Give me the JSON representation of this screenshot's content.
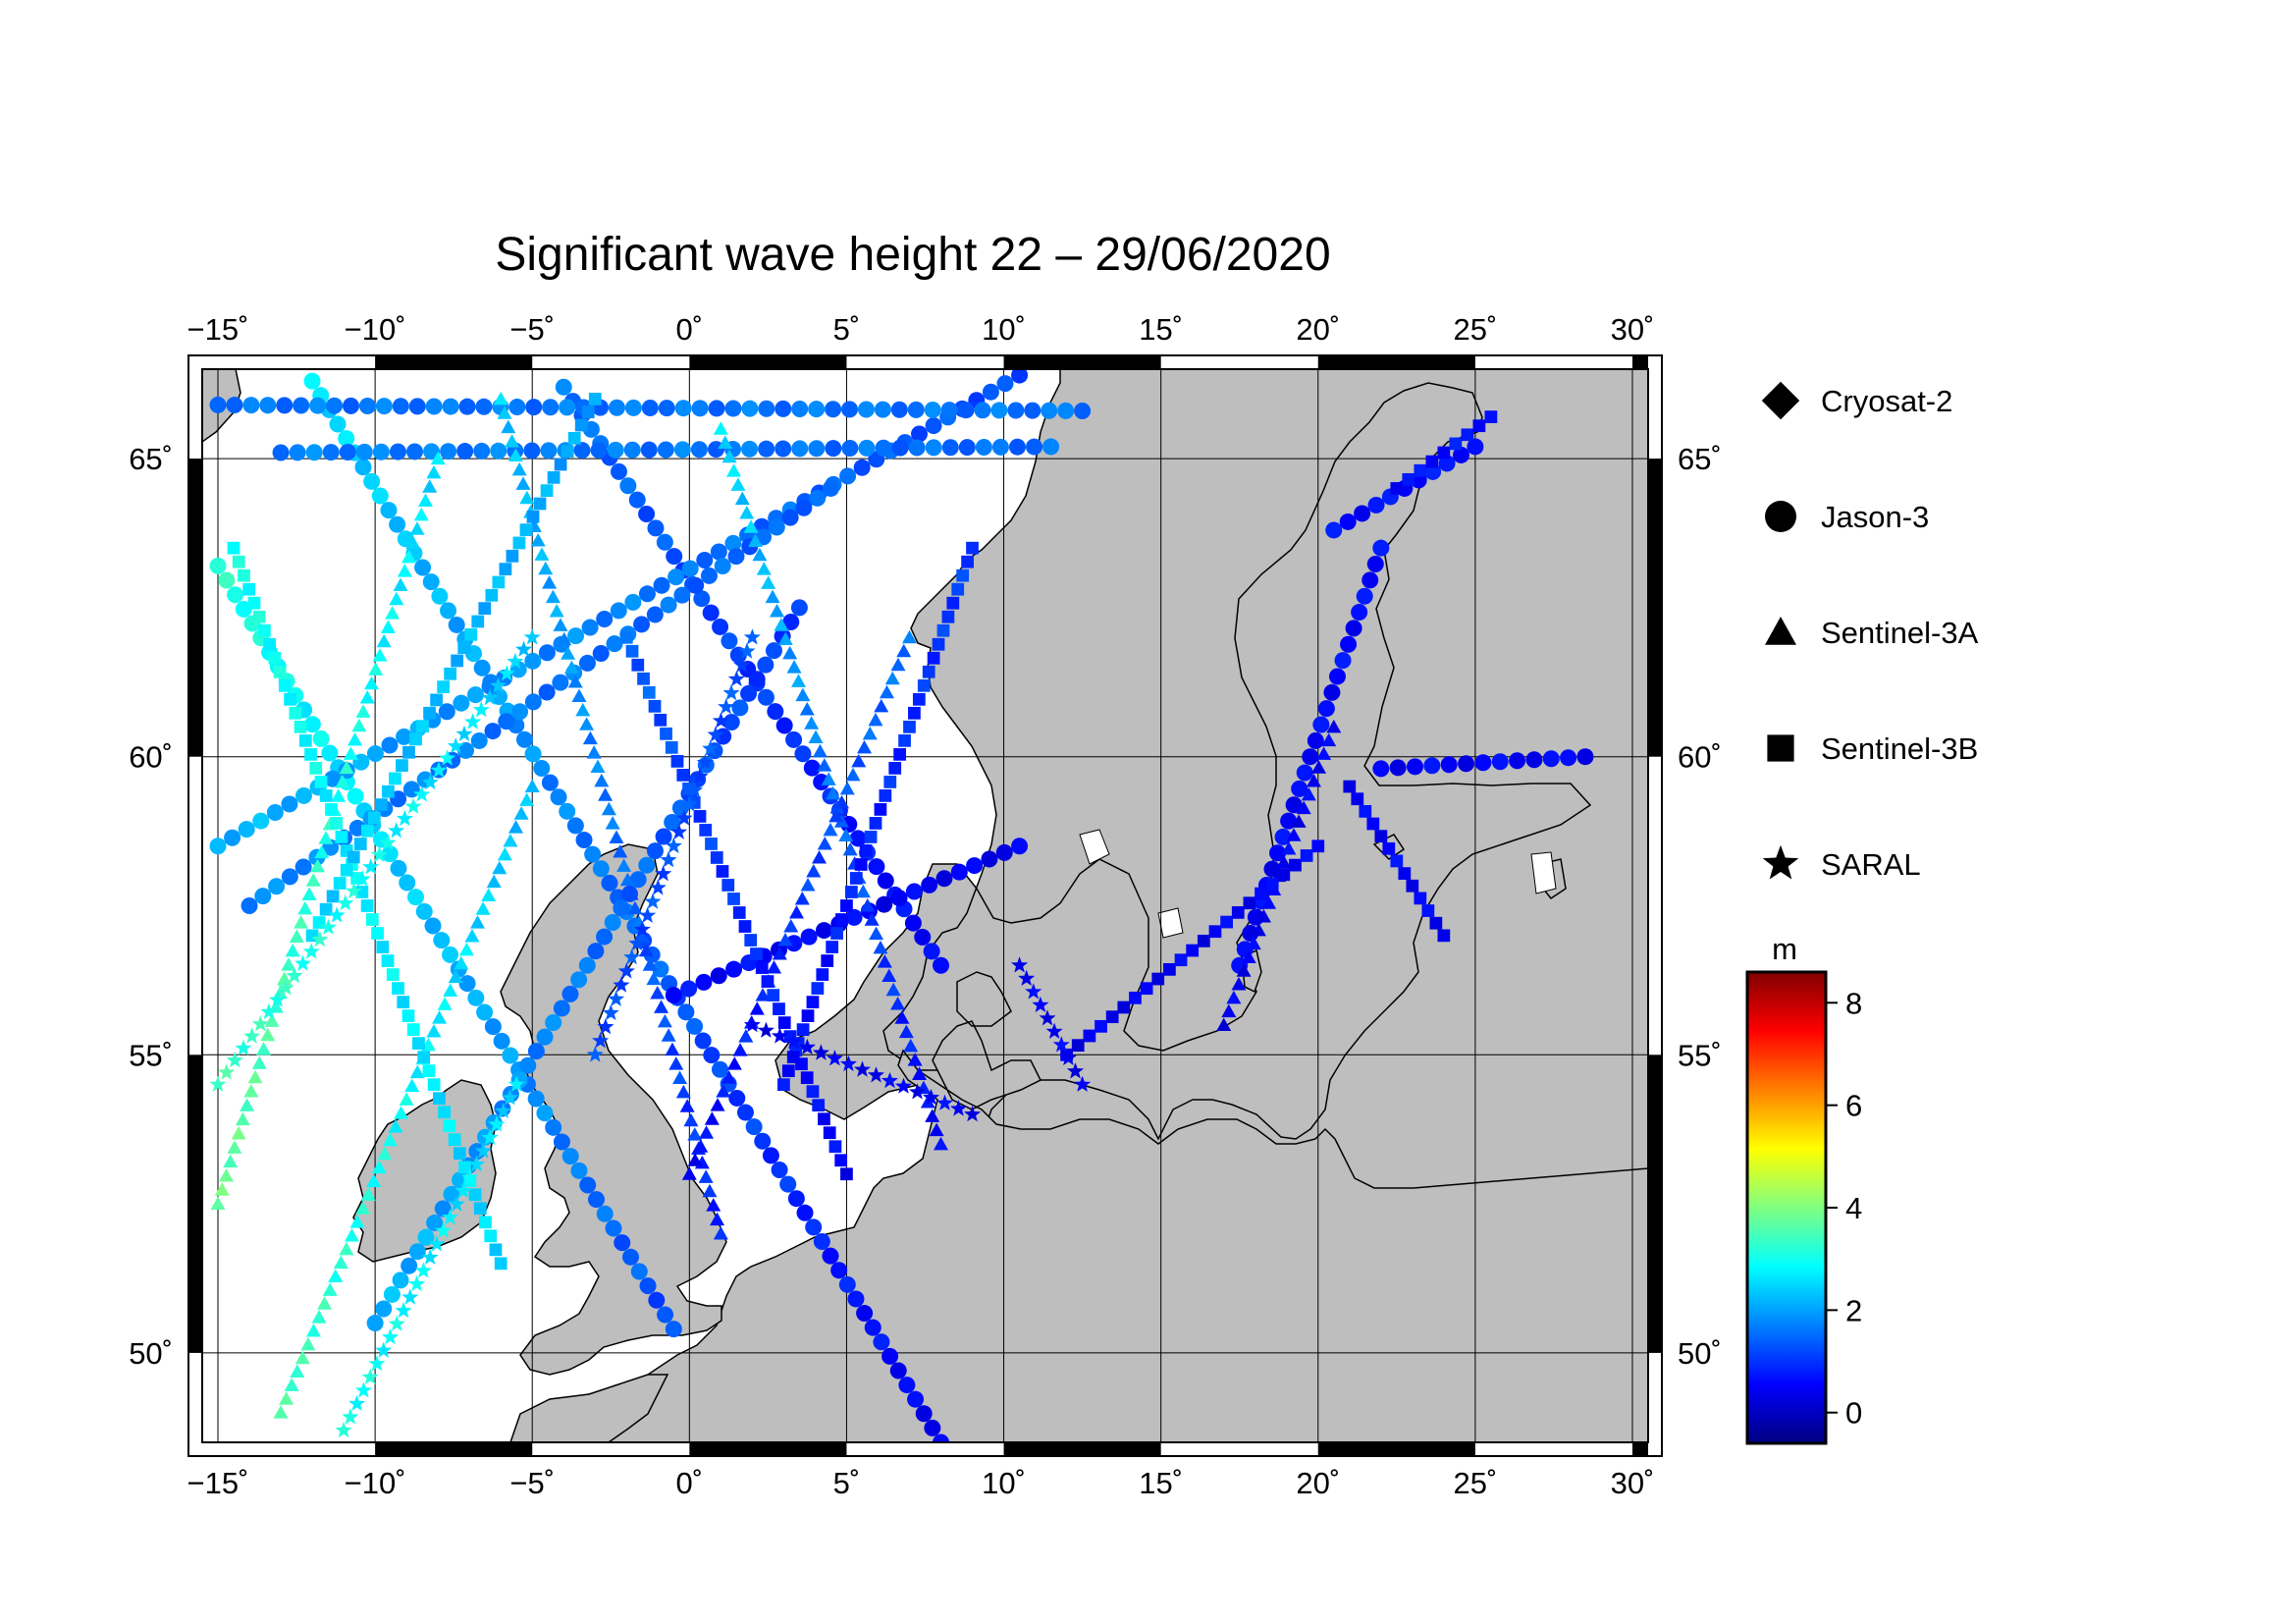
{
  "title": "Significant wave height 22 – 29/06/2020",
  "map": {
    "lon_range": [
      -15.5,
      30.5
    ],
    "lat_range": [
      48.5,
      66.5
    ],
    "lon_ticks": [
      -15,
      -10,
      -5,
      0,
      5,
      10,
      15,
      20,
      25,
      30
    ],
    "lon_tick_labels": [
      "−15˚",
      "−10˚",
      "−5˚",
      "0˚",
      "5˚",
      "10˚",
      "15˚",
      "20˚",
      "25˚",
      "30˚"
    ],
    "lat_ticks": [
      50,
      55,
      60,
      65
    ],
    "lat_tick_labels": [
      "50˚",
      "55˚",
      "60˚",
      "65˚"
    ],
    "land_color": "#bebebe",
    "sea_color": "#ffffff"
  },
  "legend": {
    "items": [
      {
        "label": "Cryosat-2",
        "symbol": "diamond"
      },
      {
        "label": "Jason-3",
        "symbol": "circle"
      },
      {
        "label": "Sentinel-3A",
        "symbol": "triangle"
      },
      {
        "label": "Sentinel-3B",
        "symbol": "square"
      },
      {
        "label": "SARAL",
        "symbol": "star"
      }
    ]
  },
  "colorbar": {
    "unit": "m",
    "range": [
      -0.6,
      8.6
    ],
    "ticks": [
      0,
      2,
      4,
      6,
      8
    ],
    "tick_labels": [
      "0",
      "2",
      "4",
      "6",
      "8"
    ],
    "colors": [
      "#000080",
      "#0000ff",
      "#0080ff",
      "#00ffff",
      "#80ff80",
      "#ffff00",
      "#ff8000",
      "#ff0000",
      "#800000"
    ]
  },
  "chart_data": {
    "type": "scatter",
    "title": "Significant wave height 22 – 29/06/2020",
    "xlabel": "",
    "ylabel": "",
    "xlim": [
      -15.5,
      30.5
    ],
    "ylim": [
      48.5,
      66.5
    ],
    "color_variable_unit": "m",
    "tracks": [
      {
        "satellite": "Jason-3",
        "from": [
          -15,
          63.2
        ],
        "to": [
          -0.5,
          50.4
        ],
        "swh_start": 3.2,
        "swh_end": 1.2
      },
      {
        "satellite": "Jason-3",
        "from": [
          -12,
          66.3
        ],
        "to": [
          8,
          48.5
        ],
        "swh_start": 2.6,
        "swh_end": 0.4
      },
      {
        "satellite": "Jason-3",
        "from": [
          -4,
          66.2
        ],
        "to": [
          8,
          56.5
        ],
        "swh_start": 1.6,
        "swh_end": 0.5
      },
      {
        "satellite": "Jason-3",
        "from": [
          -15,
          58.5
        ],
        "to": [
          10.5,
          66.4
        ],
        "swh_start": 2.2,
        "swh_end": 1.2
      },
      {
        "satellite": "Jason-3",
        "from": [
          -10,
          50.5
        ],
        "to": [
          3.5,
          62.5
        ],
        "swh_start": 2.2,
        "swh_end": 1.0
      },
      {
        "satellite": "Jason-3",
        "from": [
          -14,
          57.5
        ],
        "to": [
          4.5,
          64.5
        ],
        "swh_start": 1.8,
        "swh_end": 1.4
      },
      {
        "satellite": "Jason-3",
        "from": [
          -0.5,
          56
        ],
        "to": [
          10.5,
          58.5
        ],
        "swh_start": 0.6,
        "swh_end": 0.4
      },
      {
        "satellite": "Jason-3",
        "from": [
          17.5,
          56.5
        ],
        "to": [
          22,
          63.5
        ],
        "swh_start": 0.5,
        "swh_end": 0.6
      },
      {
        "satellite": "Jason-3",
        "from": [
          20.5,
          63.8
        ],
        "to": [
          25,
          65.2
        ],
        "swh_start": 0.6,
        "swh_end": 0.7
      },
      {
        "satellite": "Jason-3",
        "from": [
          22,
          59.8
        ],
        "to": [
          28.5,
          60
        ],
        "swh_start": 0.5,
        "swh_end": 0.5
      },
      {
        "satellite": "Jason-3",
        "from": [
          -15,
          65.9
        ],
        "to": [
          12.5,
          65.8
        ],
        "swh_start": 1.6,
        "swh_end": 1.6
      },
      {
        "satellite": "Jason-3",
        "from": [
          -13,
          65.1
        ],
        "to": [
          11.5,
          65.2
        ],
        "swh_start": 1.7,
        "swh_end": 1.5
      },
      {
        "satellite": "Sentinel-3A",
        "from": [
          -15,
          52.5
        ],
        "to": [
          -8,
          65
        ],
        "swh_start": 3.8,
        "swh_end": 2.5
      },
      {
        "satellite": "Sentinel-3A",
        "from": [
          -13,
          49
        ],
        "to": [
          -5,
          59.5
        ],
        "swh_start": 3.5,
        "swh_end": 2.2
      },
      {
        "satellite": "Sentinel-3A",
        "from": [
          -6,
          66
        ],
        "to": [
          1,
          52
        ],
        "swh_start": 2.4,
        "swh_end": 0.8
      },
      {
        "satellite": "Sentinel-3A",
        "from": [
          1,
          65.5
        ],
        "to": [
          8,
          53.5
        ],
        "swh_start": 2.6,
        "swh_end": 0.5
      },
      {
        "satellite": "Sentinel-3A",
        "from": [
          0,
          53
        ],
        "to": [
          7,
          62
        ],
        "swh_start": 0.5,
        "swh_end": 1.6
      },
      {
        "satellite": "Sentinel-3A",
        "from": [
          17,
          55.5
        ],
        "to": [
          20.5,
          60.5
        ],
        "swh_start": 0.4,
        "swh_end": 0.5
      },
      {
        "satellite": "Sentinel-3B",
        "from": [
          -14.5,
          63.5
        ],
        "to": [
          -6,
          51.5
        ],
        "swh_start": 3.0,
        "swh_end": 2.5
      },
      {
        "satellite": "Sentinel-3B",
        "from": [
          -12,
          57
        ],
        "to": [
          -3,
          66
        ],
        "swh_start": 2.5,
        "swh_end": 2.0
      },
      {
        "satellite": "Sentinel-3B",
        "from": [
          -2,
          62
        ],
        "to": [
          5,
          53
        ],
        "swh_start": 1.4,
        "swh_end": 0.5
      },
      {
        "satellite": "Sentinel-3B",
        "from": [
          3,
          54.5
        ],
        "to": [
          9,
          63.5
        ],
        "swh_start": 0.6,
        "swh_end": 1.1
      },
      {
        "satellite": "Sentinel-3B",
        "from": [
          12,
          55
        ],
        "to": [
          20,
          58.5
        ],
        "swh_start": 0.4,
        "swh_end": 0.5
      },
      {
        "satellite": "Sentinel-3B",
        "from": [
          21,
          59.5
        ],
        "to": [
          24,
          57
        ],
        "swh_start": 0.5,
        "swh_end": 0.5
      },
      {
        "satellite": "Sentinel-3B",
        "from": [
          22.5,
          64.5
        ],
        "to": [
          25.5,
          65.7
        ],
        "swh_start": 0.6,
        "swh_end": 0.7
      },
      {
        "satellite": "SARAL",
        "from": [
          -15,
          54.5
        ],
        "to": [
          -5,
          62
        ],
        "swh_start": 3.4,
        "swh_end": 2.4
      },
      {
        "satellite": "SARAL",
        "from": [
          -11,
          48.7
        ],
        "to": [
          -5.5,
          54.5
        ],
        "swh_start": 3.0,
        "swh_end": 2.5
      },
      {
        "satellite": "SARAL",
        "from": [
          -3,
          55
        ],
        "to": [
          2,
          62
        ],
        "swh_start": 1.2,
        "swh_end": 1.3
      },
      {
        "satellite": "SARAL",
        "from": [
          2,
          55.5
        ],
        "to": [
          9,
          54
        ],
        "swh_start": 0.4,
        "swh_end": 0.5
      },
      {
        "satellite": "SARAL",
        "from": [
          10.5,
          56.5
        ],
        "to": [
          12.5,
          54.5
        ],
        "swh_start": 0.5,
        "swh_end": 0.4
      }
    ]
  }
}
